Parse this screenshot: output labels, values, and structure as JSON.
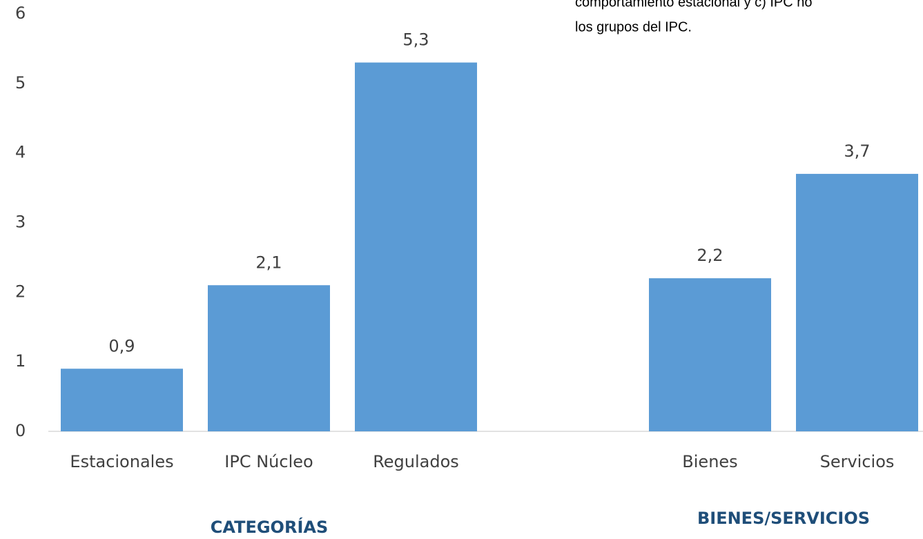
{
  "chart_data": {
    "type": "bar",
    "categories": [
      "Estacionales",
      "IPC Núcleo",
      "Regulados",
      null,
      "Bienes",
      "Servicios"
    ],
    "values": [
      0.9,
      2.1,
      5.3,
      null,
      2.2,
      3.7
    ],
    "value_labels": [
      "0,9",
      "2,1",
      "5,3",
      null,
      "2,2",
      "3,7"
    ],
    "color": "#5b9bd5",
    "ylim": [
      0,
      6
    ],
    "yticks": [
      0,
      1,
      2,
      3,
      4,
      5,
      6
    ],
    "grid": false,
    "group_labels": [
      "CATEGORÍAS",
      "BIENES/SERVICIOS"
    ],
    "annotations": [
      "comportamiento estacional y c) IPC no",
      "los grupos del IPC."
    ]
  }
}
